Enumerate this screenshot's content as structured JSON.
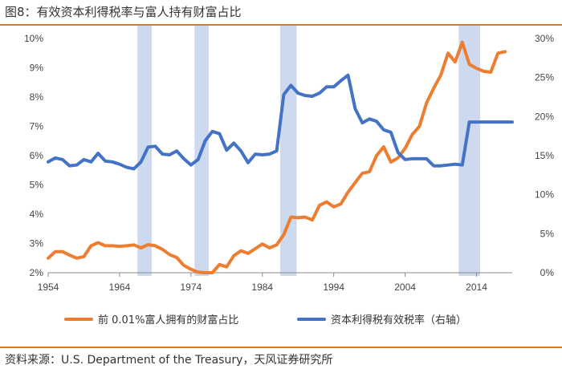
{
  "title": "图8：有效资本利得税率与富人持有财富占比",
  "source": "资料来源：U.S. Department of the Treasury，天风证券研究所",
  "colors": {
    "wealth_share": "#ed7d31",
    "tax_rate": "#4472c4",
    "shade": "#cdd9ef",
    "rule": "#d97a2b"
  },
  "chart_data": {
    "type": "line",
    "title": "图8：有效资本利得税率与富人持有财富占比",
    "xlabel": "",
    "ylabel": "",
    "xlim": [
      1954,
      2019
    ],
    "x_ticks": [
      "1954",
      "1964",
      "1974",
      "1984",
      "1994",
      "2004",
      "2014"
    ],
    "y_left": {
      "lim": [
        2,
        10
      ],
      "ticks": [
        "2%",
        "3%",
        "4%",
        "5%",
        "6%",
        "7%",
        "8%",
        "9%",
        "10%"
      ]
    },
    "y_right": {
      "lim": [
        0,
        30
      ],
      "ticks": [
        "0%",
        "5%",
        "10%",
        "15%",
        "20%",
        "25%",
        "30%"
      ]
    },
    "grid": false,
    "legend_position": "bottom",
    "shaded_periods": [
      [
        1966.5,
        1968.5
      ],
      [
        1974.5,
        1976.5
      ],
      [
        1986.5,
        1988.8
      ],
      [
        2011.5,
        2014.5
      ]
    ],
    "series": [
      {
        "name": "前 0.01%富人拥有的财富占比",
        "axis": "left",
        "color": "#ed7d31",
        "x": [
          1954,
          1955,
          1956,
          1957,
          1958,
          1959,
          1960,
          1961,
          1962,
          1963,
          1964,
          1965,
          1966,
          1967,
          1968,
          1969,
          1970,
          1971,
          1972,
          1973,
          1974,
          1975,
          1976,
          1977,
          1978,
          1979,
          1980,
          1981,
          1982,
          1983,
          1984,
          1985,
          1986,
          1987,
          1988,
          1989,
          1990,
          1991,
          1992,
          1993,
          1994,
          1995,
          1996,
          1997,
          1998,
          1999,
          2000,
          2001,
          2002,
          2003,
          2004,
          2005,
          2006,
          2007,
          2008,
          2009,
          2010,
          2011,
          2012,
          2013,
          2014,
          2015,
          2016,
          2017,
          2018
        ],
        "values": [
          2.5,
          2.72,
          2.72,
          2.6,
          2.5,
          2.55,
          2.92,
          3.03,
          2.92,
          2.92,
          2.9,
          2.92,
          2.95,
          2.85,
          2.96,
          2.92,
          2.8,
          2.62,
          2.52,
          2.25,
          2.12,
          2.02,
          2.0,
          2.0,
          2.28,
          2.2,
          2.58,
          2.75,
          2.66,
          2.82,
          2.98,
          2.85,
          2.95,
          3.3,
          3.9,
          3.88,
          3.9,
          3.8,
          4.3,
          4.42,
          4.25,
          4.35,
          4.75,
          5.08,
          5.4,
          5.45,
          6.0,
          6.3,
          5.78,
          5.92,
          6.25,
          6.72,
          7.0,
          7.8,
          8.3,
          8.75,
          9.5,
          9.2,
          9.87,
          9.12,
          8.98,
          8.88,
          8.85,
          9.5,
          9.55
        ]
      },
      {
        "name": "资本利得税有效税率（右轴）",
        "axis": "right",
        "color": "#4472c4",
        "x": [
          1954,
          1955,
          1956,
          1957,
          1958,
          1959,
          1960,
          1961,
          1962,
          1963,
          1964,
          1965,
          1966,
          1967,
          1968,
          1969,
          1970,
          1971,
          1972,
          1973,
          1974,
          1975,
          1976,
          1977,
          1978,
          1979,
          1980,
          1981,
          1982,
          1983,
          1984,
          1985,
          1986,
          1987,
          1988,
          1989,
          1990,
          1991,
          1992,
          1993,
          1994,
          1995,
          1996,
          1997,
          1998,
          1999,
          2000,
          2001,
          2002,
          2003,
          2004,
          2005,
          2006,
          2007,
          2008,
          2009,
          2010,
          2011,
          2012,
          2013,
          2014,
          2015,
          2016,
          2017,
          2018,
          2019
        ],
        "values": [
          14.2,
          14.7,
          14.5,
          13.7,
          13.8,
          14.5,
          14.2,
          15.3,
          14.3,
          14.2,
          13.9,
          13.5,
          13.3,
          14.2,
          16.1,
          16.2,
          15.2,
          15.1,
          15.6,
          14.6,
          13.8,
          14.5,
          16.9,
          18.1,
          17.8,
          15.7,
          16.6,
          15.6,
          14.1,
          15.2,
          15.1,
          15.2,
          15.6,
          22.8,
          24.0,
          23.0,
          22.7,
          22.6,
          23.0,
          23.8,
          23.8,
          24.6,
          25.3,
          21.0,
          19.2,
          19.7,
          19.4,
          18.3,
          18.0,
          15.4,
          14.5,
          14.6,
          14.6,
          14.6,
          13.7,
          13.7,
          13.8,
          13.9,
          13.8,
          19.3,
          19.3,
          19.3,
          19.3,
          19.3,
          19.3,
          19.3
        ]
      }
    ]
  }
}
